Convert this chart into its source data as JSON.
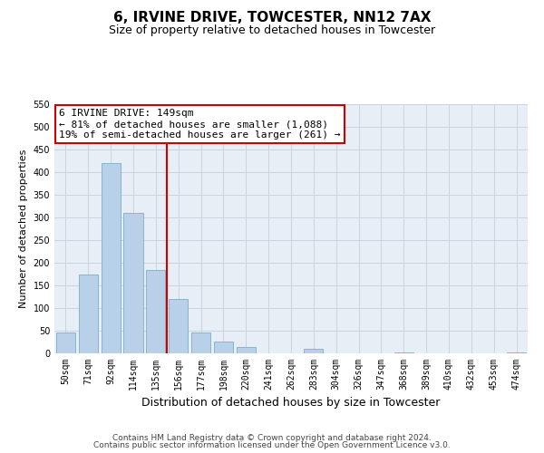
{
  "title": "6, IRVINE DRIVE, TOWCESTER, NN12 7AX",
  "subtitle": "Size of property relative to detached houses in Towcester",
  "xlabel": "Distribution of detached houses by size in Towcester",
  "ylabel": "Number of detached properties",
  "categories": [
    "50sqm",
    "71sqm",
    "92sqm",
    "114sqm",
    "135sqm",
    "156sqm",
    "177sqm",
    "198sqm",
    "220sqm",
    "241sqm",
    "262sqm",
    "283sqm",
    "304sqm",
    "326sqm",
    "347sqm",
    "368sqm",
    "389sqm",
    "410sqm",
    "432sqm",
    "453sqm",
    "474sqm"
  ],
  "values": [
    47,
    175,
    420,
    310,
    185,
    120,
    46,
    27,
    14,
    0,
    0,
    11,
    0,
    0,
    0,
    2,
    0,
    0,
    0,
    0,
    2
  ],
  "bar_color": "#b8d0e8",
  "bar_edge_color": "#7aafc8",
  "plot_bg_color": "#e8eef5",
  "background_color": "#ffffff",
  "grid_color": "#c8d4e0",
  "vline_color": "#cc0000",
  "vline_x_idx": 4.5,
  "annotation_line1": "6 IRVINE DRIVE: 149sqm",
  "annotation_line2": "← 81% of detached houses are smaller (1,088)",
  "annotation_line3": "19% of semi-detached houses are larger (261) →",
  "annotation_box_edge_color": "#cc0000",
  "ylim": [
    0,
    550
  ],
  "yticks": [
    0,
    50,
    100,
    150,
    200,
    250,
    300,
    350,
    400,
    450,
    500,
    550
  ],
  "footnote_line1": "Contains HM Land Registry data © Crown copyright and database right 2024.",
  "footnote_line2": "Contains public sector information licensed under the Open Government Licence v3.0.",
  "title_fontsize": 11,
  "subtitle_fontsize": 9,
  "xlabel_fontsize": 9,
  "ylabel_fontsize": 8,
  "tick_fontsize": 7,
  "annotation_fontsize": 8,
  "footnote_fontsize": 6.5
}
